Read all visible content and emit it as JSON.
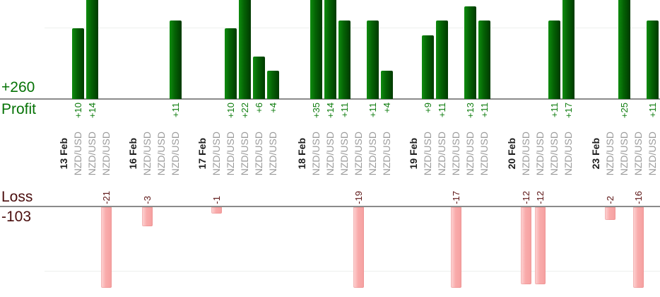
{
  "summary": {
    "profit_total_label": "+260",
    "profit_axis_label": "Profit",
    "loss_axis_label": "Loss",
    "loss_total_label": "-103"
  },
  "instrument": "NZD/USD",
  "chart_data": {
    "type": "bar",
    "orientation": "vertical",
    "layout": "split profit above / loss below dual baselines",
    "profit_total": 260,
    "loss_total": -103,
    "grid": "single faint line at +10 and -10",
    "groups": [
      {
        "date": "13 Feb",
        "values": [
          10,
          14,
          -21
        ],
        "labels": [
          "+10",
          "+14",
          "-21"
        ]
      },
      {
        "date": "16 Feb",
        "values": [
          -3,
          0,
          11
        ],
        "labels": [
          "-3",
          "",
          "+11"
        ]
      },
      {
        "date": "17 Feb",
        "values": [
          -1,
          10,
          22,
          6,
          4
        ],
        "labels": [
          "-1",
          "+10",
          "+22",
          "+6",
          "+4"
        ]
      },
      {
        "date": "18 Feb",
        "values": [
          35,
          14,
          11,
          -19,
          11,
          4
        ],
        "labels": [
          "+35",
          "+14",
          "+11",
          "-19",
          "+11",
          "+4"
        ]
      },
      {
        "date": "19 Feb",
        "values": [
          9,
          11,
          -17,
          13,
          11
        ],
        "labels": [
          "+9",
          "+11",
          "-17",
          "+13",
          "+11"
        ]
      },
      {
        "date": "20 Feb",
        "values": [
          -12,
          -12,
          11,
          17
        ],
        "labels": [
          "-12",
          "-12",
          "+11",
          "+17"
        ]
      },
      {
        "date": "23 Feb",
        "values": [
          -2,
          25,
          -16,
          11
        ],
        "labels": [
          "-2",
          "+25",
          "-16",
          "+11"
        ]
      }
    ]
  },
  "colors": {
    "profit_text": "#067306",
    "loss_text": "#4a0d0d",
    "pval_color": "#0e7c0e",
    "lval_color": "#5c1414",
    "label_gray": "#9b9b9b",
    "date_color": "#1f1f1f",
    "axis_line": "#8b8b8b",
    "grid_line": "#edf0ed",
    "bar_green_light": "#0f8c0f",
    "bar_green_mid": "#046104",
    "bar_green_dark": "#013a01",
    "bar_pink_light": "#fdd6d6",
    "bar_pink_mid": "#f9abab",
    "bar_pink_dark": "#f5a0a0"
  }
}
